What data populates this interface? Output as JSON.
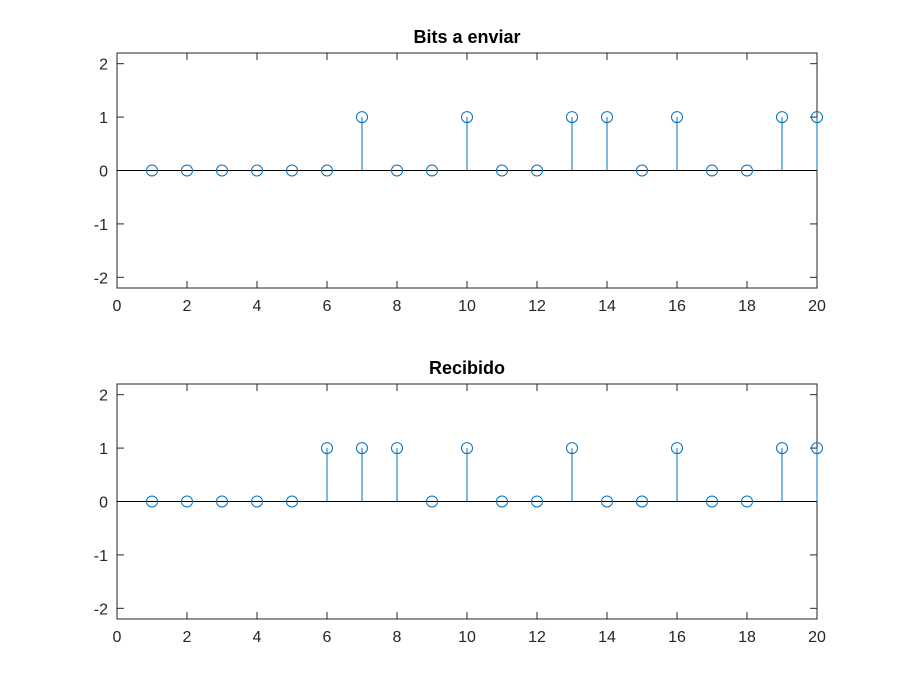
{
  "chart_data": [
    {
      "type": "stem",
      "title": "Bits a enviar",
      "x": [
        1,
        2,
        3,
        4,
        5,
        6,
        7,
        8,
        9,
        10,
        11,
        12,
        13,
        14,
        15,
        16,
        17,
        18,
        19,
        20
      ],
      "values": [
        0,
        0,
        0,
        0,
        0,
        0,
        1,
        0,
        0,
        1,
        0,
        0,
        1,
        1,
        0,
        1,
        0,
        0,
        1,
        1
      ],
      "xlim": [
        0,
        20
      ],
      "ylim": [
        -2.2,
        2.2
      ],
      "xticks": [
        0,
        2,
        4,
        6,
        8,
        10,
        12,
        14,
        16,
        18,
        20
      ],
      "yticks": [
        -2,
        -1,
        0,
        1,
        2
      ],
      "xlabel": "",
      "ylabel": "",
      "grid": false,
      "color": "#0072BD"
    },
    {
      "type": "stem",
      "title": "Recibido",
      "x": [
        1,
        2,
        3,
        4,
        5,
        6,
        7,
        8,
        9,
        10,
        11,
        12,
        13,
        14,
        15,
        16,
        17,
        18,
        19,
        20
      ],
      "values": [
        0,
        0,
        0,
        0,
        0,
        1,
        1,
        1,
        0,
        1,
        0,
        0,
        1,
        0,
        0,
        1,
        0,
        0,
        1,
        1
      ],
      "xlim": [
        0,
        20
      ],
      "ylim": [
        -2.2,
        2.2
      ],
      "xticks": [
        0,
        2,
        4,
        6,
        8,
        10,
        12,
        14,
        16,
        18,
        20
      ],
      "yticks": [
        -2,
        -1,
        0,
        1,
        2
      ],
      "xlabel": "",
      "ylabel": "",
      "grid": false,
      "color": "#0072BD"
    }
  ]
}
